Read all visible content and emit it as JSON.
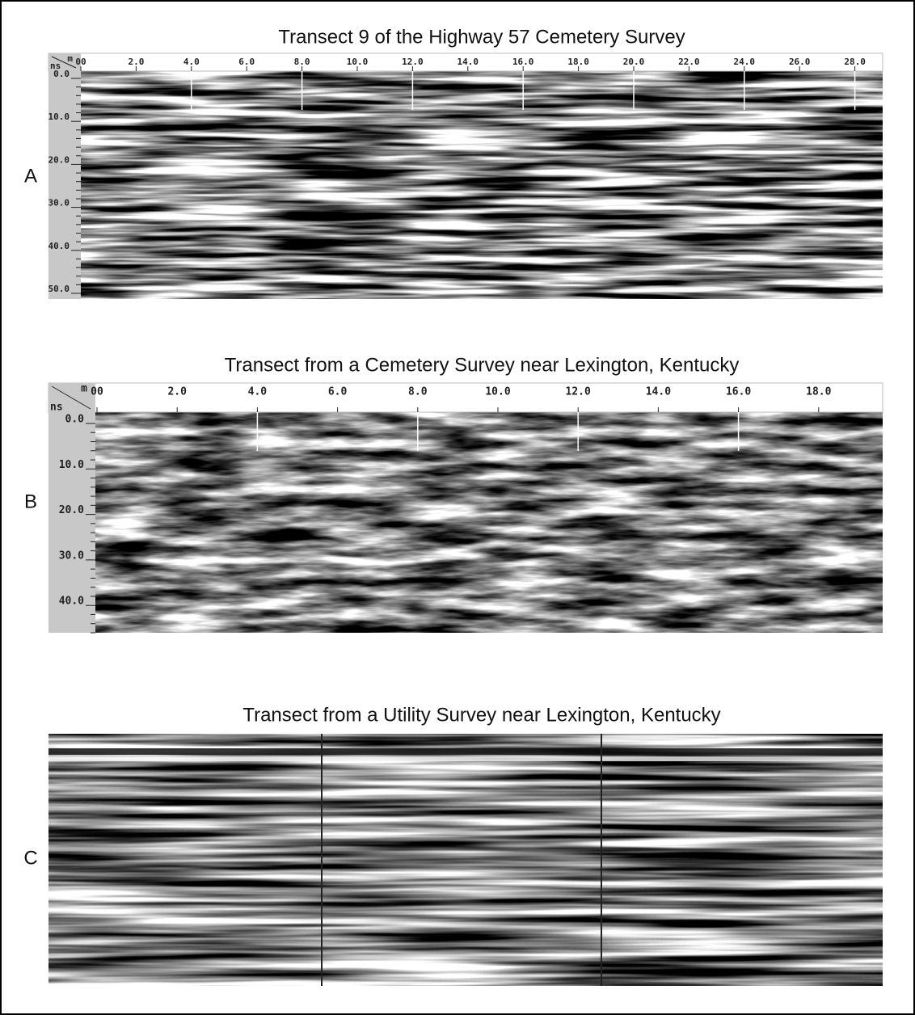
{
  "panels": [
    {
      "letter": "A",
      "title": "Transect 9 of the Highway 57 Cemetery Survey",
      "x_unit": "m",
      "y_unit": "ns",
      "x_ticks": [
        "00",
        "2.0",
        "4.0",
        "6.0",
        "8.0",
        "10.0",
        "12.0",
        "14.0",
        "16.0",
        "18.0",
        "20.0",
        "22.0",
        "24.0",
        "26.0",
        "28.0"
      ],
      "y_ticks": [
        "0.0",
        "10.0",
        "20.0",
        "30.0",
        "40.0",
        "50.0"
      ]
    },
    {
      "letter": "B",
      "title": "Transect from a Cemetery Survey near Lexington, Kentucky",
      "x_unit": "m",
      "y_unit": "ns",
      "x_ticks": [
        "00",
        "2.0",
        "4.0",
        "6.0",
        "8.0",
        "10.0",
        "12.0",
        "14.0",
        "16.0",
        "18.0"
      ],
      "y_ticks": [
        "0.0",
        "10.0",
        "20.0",
        "30.0",
        "40.0"
      ]
    },
    {
      "letter": "C",
      "title": "Transect from a Utility Survey near Lexington, Kentucky"
    }
  ]
}
